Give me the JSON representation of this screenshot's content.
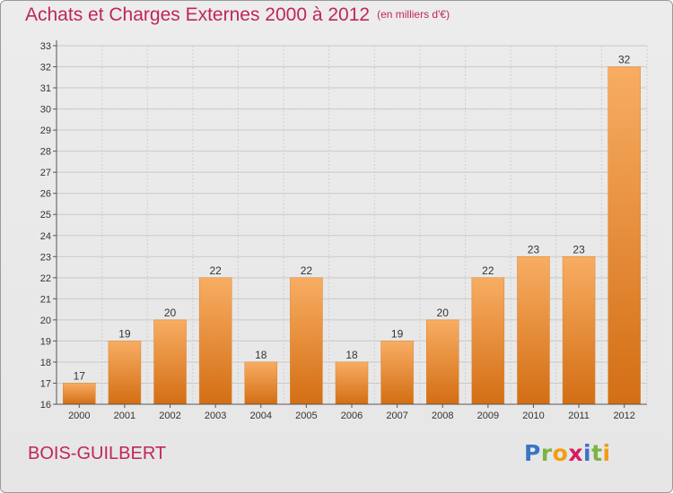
{
  "title": "Achats et Charges Externes 2000 à 2012",
  "unit": "(en milliers d'€)",
  "commune": "BOIS-GUILBERT",
  "logo": {
    "letters": [
      "P",
      "r",
      "o",
      "x",
      "i",
      "t",
      "i"
    ],
    "colors": [
      "#3a74c4",
      "#7cb342",
      "#f39c12",
      "#d81b60",
      "#3a74c4",
      "#7cb342",
      "#f39c12"
    ]
  },
  "colors": {
    "accent": "#c0265a",
    "bar": "#ee8a2c",
    "bar_light": "#f8ad63",
    "bar_dark": "#d36e14"
  },
  "chart_data": {
    "type": "bar",
    "title": "Achats et Charges Externes 2000 à 2012",
    "categories": [
      "2000",
      "2001",
      "2002",
      "2003",
      "2004",
      "2005",
      "2006",
      "2007",
      "2008",
      "2009",
      "2010",
      "2011",
      "2012"
    ],
    "values": [
      17,
      19,
      20,
      22,
      18,
      22,
      18,
      19,
      20,
      22,
      23,
      23,
      32
    ],
    "ylim": [
      16,
      33
    ],
    "yticks": [
      16,
      17,
      18,
      19,
      20,
      21,
      22,
      23,
      24,
      25,
      26,
      27,
      28,
      29,
      30,
      31,
      32,
      33
    ],
    "grid": true,
    "data_labels": true,
    "legend": "none"
  }
}
